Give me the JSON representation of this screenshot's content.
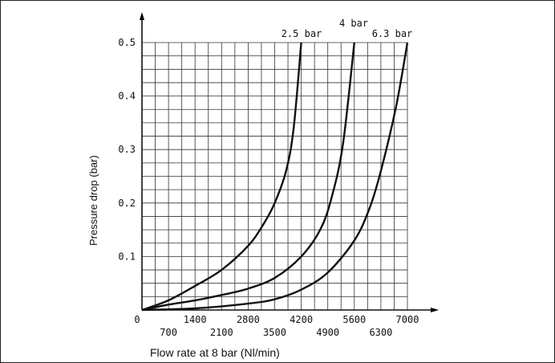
{
  "chart_data": {
    "type": "line",
    "xlabel": "Flow rate at 8 bar (Nl/min)",
    "ylabel": "Pressure drop (bar)",
    "xlim": [
      0,
      7000
    ],
    "ylim": [
      0,
      0.5
    ],
    "x_ticks_upper": [
      {
        "value": 0,
        "label": "0"
      },
      {
        "value": 1400,
        "label": "1400"
      },
      {
        "value": 2800,
        "label": "2800"
      },
      {
        "value": 4200,
        "label": "4200"
      },
      {
        "value": 5600,
        "label": "5600"
      },
      {
        "value": 7000,
        "label": "7000"
      }
    ],
    "x_ticks_lower": [
      {
        "value": 700,
        "label": "700"
      },
      {
        "value": 2100,
        "label": "2100"
      },
      {
        "value": 3500,
        "label": "3500"
      },
      {
        "value": 4900,
        "label": "4900"
      },
      {
        "value": 6300,
        "label": "6300"
      }
    ],
    "y_ticks": [
      {
        "value": 0.1,
        "label": "0.1"
      },
      {
        "value": 0.2,
        "label": "0.2"
      },
      {
        "value": 0.3,
        "label": "0.3"
      },
      {
        "value": 0.4,
        "label": "0.4"
      },
      {
        "value": 0.5,
        "label": "0.5"
      }
    ],
    "grid": true,
    "grid_step_x": 350,
    "grid_step_y": 0.025,
    "series": [
      {
        "name": "2.5 bar",
        "x": [
          0,
          700,
          1400,
          2100,
          2800,
          3200,
          3500,
          3800,
          4000,
          4200
        ],
        "y": [
          0,
          0.018,
          0.045,
          0.075,
          0.12,
          0.16,
          0.2,
          0.26,
          0.34,
          0.5
        ]
      },
      {
        "name": "4 bar",
        "x": [
          0,
          700,
          1400,
          2100,
          2800,
          3500,
          4200,
          4700,
          5000,
          5300,
          5600
        ],
        "y": [
          0,
          0.01,
          0.018,
          0.028,
          0.04,
          0.06,
          0.1,
          0.15,
          0.21,
          0.31,
          0.5
        ]
      },
      {
        "name": "6.3 bar",
        "x": [
          0,
          1400,
          2800,
          3500,
          4200,
          4900,
          5600,
          6000,
          6300,
          6700,
          7000
        ],
        "y": [
          0,
          0.003,
          0.012,
          0.02,
          0.038,
          0.07,
          0.13,
          0.19,
          0.26,
          0.38,
          0.5
        ]
      }
    ]
  }
}
